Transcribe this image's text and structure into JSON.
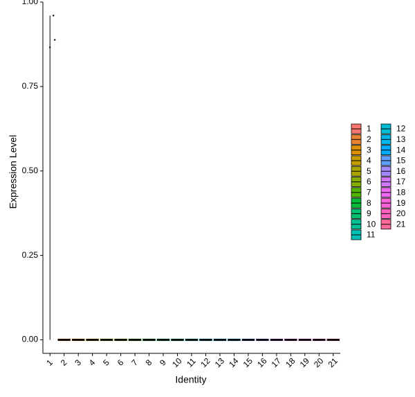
{
  "chart_data": {
    "type": "violin",
    "x_label": "Identity",
    "y_label": "Expression Level",
    "categories": [
      "1",
      "2",
      "3",
      "4",
      "5",
      "6",
      "7",
      "8",
      "9",
      "10",
      "11",
      "12",
      "13",
      "14",
      "15",
      "16",
      "17",
      "18",
      "19",
      "20",
      "21"
    ],
    "values": [
      0.96,
      0,
      0,
      0,
      0,
      0,
      0,
      0,
      0,
      0,
      0,
      0,
      0,
      0,
      0,
      0,
      0,
      0,
      0,
      0,
      0
    ],
    "colors": [
      "#F8766D",
      "#EB8335",
      "#DA8F00",
      "#C49A00",
      "#A9A400",
      "#86AC00",
      "#53B400",
      "#00BA38",
      "#00BE6C",
      "#00C094",
      "#00C0B6",
      "#00BDD4",
      "#00B6EB",
      "#00ABFD",
      "#619CFF",
      "#A58AFF",
      "#CF78FF",
      "#EA6AF1",
      "#FA62D7",
      "#FF62BC",
      "#FF6A98"
    ],
    "points": [
      {
        "category": 0,
        "value": 0.96
      },
      {
        "category": 0,
        "value": 0.888
      },
      {
        "category": 0,
        "value": 0.866
      }
    ],
    "ylim": [
      -0.04,
      1.0
    ],
    "yticks": [
      {
        "value": 0,
        "label": "0.00"
      },
      0.25,
      {
        "value": 0.5,
        "label": "0.50"
      },
      0.75,
      {
        "value": 1,
        "label": "1.00"
      }
    ],
    "legend_columns": 2
  }
}
